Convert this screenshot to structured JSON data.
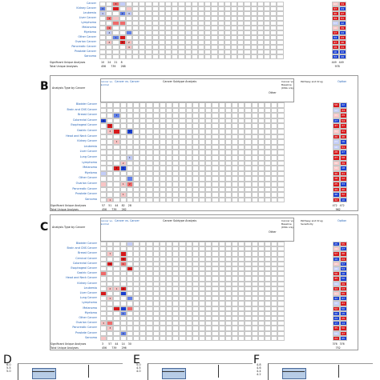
{
  "panels": {
    "A": {
      "rows": [
        "Cancer",
        "Kidney Cancer",
        "Leukemia",
        "Liver Cancer",
        "Lymphoma",
        "Melanoma",
        "Myeloma",
        "Other Cancer",
        "Ovarian Cancer",
        "Pancreatic Cancer",
        "Prostate Cancer",
        "Sarcoma"
      ],
      "sig_label": "Significant Unique Analyses",
      "total_label": "Total Unique Analyses",
      "sig_values": [
        "10",
        "24",
        "21",
        "8"
      ],
      "total_values": [
        "456",
        "739",
        "268"
      ],
      "right_sig": [
        "449",
        "449"
      ],
      "right_total": [
        "978"
      ]
    },
    "B": {
      "label": "B",
      "axis_title": "Analysis Type by Cancer",
      "header_group": "Cancer vs. Cancer",
      "col_cancer_normal": "Cancer vs. Normal",
      "col_subtype": "Cancer Subtype Analysis",
      "col_dna": "Cancer vs. Baseline (DNA only)",
      "col_pathway": "Pathway and Drug",
      "col_other": "Other",
      "col_option": "Option",
      "rows": [
        "Bladder Cancer",
        "Brain and CNS Cancer",
        "Breast Cancer",
        "Colorectal Cancer",
        "Esophageal Cancer",
        "Gastric Cancer",
        "Head and Neck Cancer",
        "Kidney Cancer",
        "Leukemia",
        "Liver Cancer",
        "Lung Cancer",
        "Lymphoma",
        "Melanoma",
        "Myeloma",
        "Other Cancer",
        "Ovarian Cancer",
        "Pancreatic Cancer",
        "Prostate Cancer",
        "Sarcoma"
      ],
      "sig_label": "Significant Unique Analyses",
      "total_label": "Total Unique Analyses",
      "sig_values": [
        "57",
        "51",
        "44",
        "82",
        "28"
      ],
      "total_values": [
        "456",
        "739",
        "262"
      ],
      "right_sig": [
        "472",
        "472"
      ],
      "right_total": [
        "962"
      ]
    },
    "C": {
      "label": "C",
      "axis_title": "Analysis Type by Cancer",
      "header_group": "Cancer vs. Cancer",
      "col_cancer_normal": "Cancer vs. Normal",
      "col_subtype": "Cancer Subtype Analysis",
      "col_dna": "Cancer vs. Baseline (DNA only)",
      "col_pathway": "Pathway and Drug Sensitivity",
      "col_other": "Other",
      "col_option": "Option",
      "rows": [
        "Bladder Cancer",
        "Brain and CNS Cancer",
        "Breast Cancer",
        "Cervical Cancer",
        "Colorectal Cancer",
        "Esophageal Cancer",
        "Gastric Cancer",
        "Head and Neck Cancer",
        "Kidney Cancer",
        "Leukemia",
        "Liver Cancer",
        "Lung Cancer",
        "Lymphoma",
        "Melanoma",
        "Myeloma",
        "Other Cancer",
        "Ovarian Cancer",
        "Pancreatic Cancer",
        "Prostate Cancer",
        "Sarcoma"
      ],
      "sig_label": "Significant Unique Analyses",
      "total_label": "Total Unique Analyses",
      "sig_values": [
        "3",
        "57",
        "44",
        "14",
        "30"
      ],
      "total_values": [
        "456",
        "739",
        "296"
      ],
      "right_sig": [
        "376",
        "376"
      ],
      "right_total": [
        "752"
      ]
    }
  },
  "boxplots": [
    {
      "label": "D",
      "ticks": [
        "6.0",
        "5.5",
        "5.0"
      ]
    },
    {
      "label": "E",
      "ticks": [
        "5.0",
        "4.5",
        "4.0"
      ]
    },
    {
      "label": "F",
      "ticks": [
        "4.8",
        "4.6",
        "4.4",
        "4.2"
      ]
    }
  ],
  "colors": {
    "red_strong": "#d7191c",
    "red_mid": "#ef6a6a",
    "red_light": "#f8c5c5",
    "blue_strong": "#1a3fd0",
    "blue_mid": "#5f7ee8",
    "blue_light": "#c3cdf7",
    "grid": "#d8d8d8",
    "label_blue": "#1f5fb5"
  }
}
